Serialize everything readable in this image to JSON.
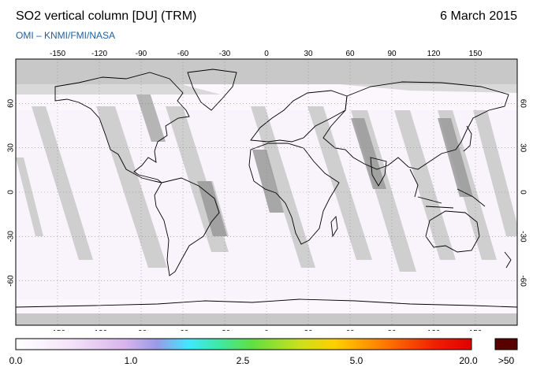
{
  "header": {
    "title": "SO2 vertical column [DU] (TRM)",
    "date": "6 March 2015",
    "credit": "OMI  –  KNMI/FMI/NASA"
  },
  "map": {
    "lon_ticks": [
      "-150",
      "-120",
      "-90",
      "-60",
      "-30",
      "0",
      "30",
      "60",
      "90",
      "120",
      "150"
    ],
    "lat_ticks": [
      "60",
      "30",
      "0",
      "-30",
      "-60"
    ],
    "projection": "equirectangular",
    "colors": {
      "no_data_polar": "#c8c8c8",
      "orbit_gap": "#cfcfcf",
      "swath_background": "#fbf7fc",
      "coastline": "#000000",
      "gridline": "#888888"
    }
  },
  "colorbar": {
    "labels": [
      "0.0",
      "1.0",
      "2.5",
      "5.0",
      "20.0"
    ],
    "overflow_label": ">50",
    "overflow_color": "#5a0000"
  }
}
